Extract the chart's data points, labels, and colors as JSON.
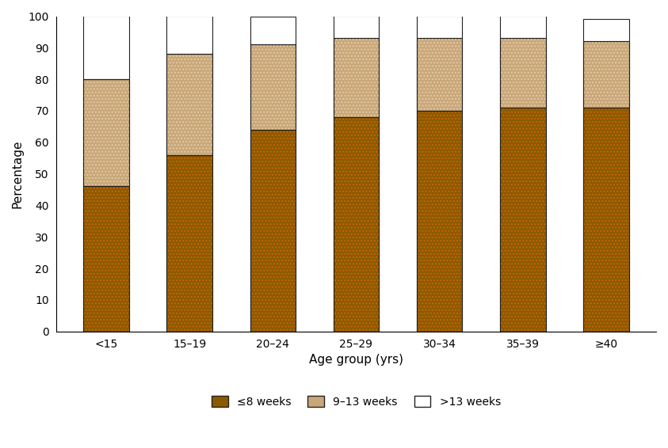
{
  "categories": [
    "<15",
    "15–19",
    "20–24",
    "25–29",
    "30–34",
    "35–39",
    "≥40"
  ],
  "weeks_le8": [
    46,
    56,
    64,
    68,
    70,
    71,
    71
  ],
  "weeks_9_13": [
    34,
    32,
    27,
    25,
    23,
    22,
    21
  ],
  "weeks_gt13": [
    20,
    12,
    9,
    7,
    7,
    7,
    7
  ],
  "color_le8": "#8B5A00",
  "color_le8_hatch": "#CC6600",
  "color_9_13": "#C8A878",
  "color_9_13_hatch": "#E8C8A8",
  "color_gt13": "#FFFFFF",
  "ylabel": "Percentage",
  "xlabel": "Age group (yrs)",
  "ylim": [
    0,
    100
  ],
  "yticks": [
    0,
    10,
    20,
    30,
    40,
    50,
    60,
    70,
    80,
    90,
    100
  ],
  "legend_labels": [
    "≤8 weeks",
    "9–13 weeks",
    ">13 weeks"
  ],
  "bar_width": 0.55,
  "edge_color": "#222222"
}
